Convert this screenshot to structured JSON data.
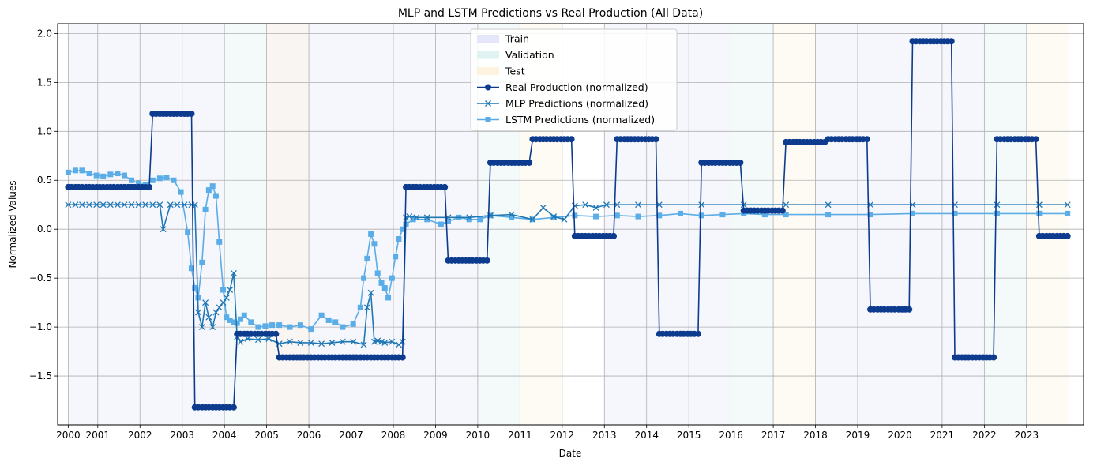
{
  "chart_data": {
    "type": "line",
    "title": "MLP and LSTM Predictions vs Real Production (All Data)",
    "xlabel": "Date",
    "ylabel": "Normalized Values",
    "x_range": [
      "2000-01-01",
      "2024-12-31"
    ],
    "ylim": [
      -2.0,
      2.1
    ],
    "grid": true,
    "legend_position": "top-center",
    "x_tick_labels": [
      "2000",
      "2001",
      "2002",
      "2003",
      "2004",
      "2005",
      "2006",
      "2007",
      "2008",
      "2009",
      "2010",
      "2011",
      "2012",
      "2013",
      "2014",
      "2015",
      "2016",
      "2017",
      "2018",
      "2019",
      "2020",
      "2021",
      "2022",
      "2023"
    ],
    "x_ticks_at_year": [
      2000.0,
      2000.7,
      2001.7,
      2002.7,
      2003.7,
      2004.7,
      2005.7,
      2006.7,
      2007.7,
      2008.7,
      2009.7,
      2010.7,
      2011.7,
      2012.7,
      2013.7,
      2014.7,
      2015.7,
      2016.7,
      2017.7,
      2018.7,
      2019.7,
      2020.7,
      2021.7,
      2022.7
    ],
    "y_ticks": [
      -1.5,
      -1.0,
      -0.5,
      0.0,
      0.5,
      1.0,
      1.5,
      2.0
    ],
    "y_tick_labels": [
      "−1.5",
      "−1.0",
      "−0.5",
      "0.0",
      "0.5",
      "1.0",
      "1.5",
      "2.0"
    ],
    "spans": [
      {
        "label": "Train",
        "color": "#e6e6fa",
        "ranges": [
          [
            2000.0,
            2003.7
          ],
          [
            2004.7,
            2009.7
          ],
          [
            2012.7,
            2015.7
          ],
          [
            2017.7,
            2021.7
          ]
        ]
      },
      {
        "label": "Validation",
        "color": "#e0f2f1",
        "ranges": [
          [
            2003.7,
            2004.7
          ],
          [
            2009.7,
            2010.7
          ],
          [
            2015.7,
            2016.7
          ],
          [
            2021.7,
            2022.7
          ]
        ]
      },
      {
        "label": "Test",
        "color": "#fdf3df",
        "ranges": [
          [
            2004.7,
            2005.7
          ],
          [
            2010.7,
            2011.7
          ],
          [
            2016.7,
            2017.7
          ],
          [
            2022.7,
            2023.7
          ]
        ]
      }
    ],
    "series": [
      {
        "name": "Real Production (normalized)",
        "color": "#0d3b8e",
        "marker": "circle",
        "x": [
          2000.0,
          2000.08,
          2000.17,
          2000.25,
          2000.33,
          2000.42,
          2000.5,
          2000.58,
          2000.67,
          2000.75,
          2000.83,
          2000.92,
          2001.0,
          2001.08,
          2001.17,
          2001.25,
          2001.33,
          2001.42,
          2001.5,
          2001.58,
          2001.67,
          2001.75,
          2001.83,
          2001.92,
          2002.0,
          2002.08,
          2002.17,
          2002.25,
          2002.33,
          2002.42,
          2002.5,
          2002.58,
          2002.67,
          2002.75,
          2002.83,
          2002.92,
          2003.0,
          2003.08,
          2003.17,
          2003.25,
          2003.33,
          2003.42,
          2003.5,
          2003.58,
          2003.67,
          2003.75,
          2003.83,
          2003.92,
          2004.0,
          2004.08,
          2004.17,
          2004.25,
          2004.33,
          2004.42,
          2004.5,
          2004.58,
          2004.67,
          2004.75,
          2004.83,
          2004.92,
          2005.0,
          2005.08,
          2005.17,
          2005.25,
          2005.33,
          2005.42,
          2005.5,
          2005.58,
          2005.67,
          2005.75,
          2005.83,
          2005.92,
          2006.0,
          2006.08,
          2006.17,
          2006.25,
          2006.33,
          2006.42,
          2006.5,
          2006.58,
          2006.67,
          2006.75,
          2006.83,
          2006.92,
          2007.0,
          2007.08,
          2007.17,
          2007.25,
          2007.33,
          2007.42,
          2007.5,
          2007.58,
          2007.67,
          2007.75,
          2007.83,
          2007.92,
          2008.0,
          2008.08,
          2008.17,
          2008.25,
          2008.33,
          2008.42,
          2008.5,
          2008.58,
          2008.67,
          2008.75,
          2008.83,
          2008.92,
          2009.0,
          2009.08,
          2009.17,
          2009.25,
          2009.33,
          2009.42,
          2009.5,
          2009.58,
          2009.67,
          2009.75,
          2009.83,
          2009.92,
          2010.0,
          2010.08,
          2010.17,
          2010.25,
          2010.33,
          2010.42,
          2010.5,
          2010.58,
          2010.67,
          2010.75,
          2010.83,
          2010.92,
          2011.0,
          2011.08,
          2011.17,
          2011.25,
          2011.33,
          2011.42,
          2011.5,
          2011.58,
          2011.67,
          2011.75,
          2011.83,
          2011.92,
          2012.0,
          2012.08,
          2012.17,
          2012.25,
          2012.33,
          2012.42,
          2012.5,
          2012.58,
          2012.67,
          2012.75,
          2012.83,
          2012.92,
          2013.0,
          2013.08,
          2013.17,
          2013.25,
          2013.33,
          2013.42,
          2013.5,
          2013.58,
          2013.67,
          2013.75,
          2013.83,
          2013.92,
          2014.0,
          2014.08,
          2014.17,
          2014.25,
          2014.33,
          2014.42,
          2014.5,
          2014.58,
          2014.67,
          2014.75,
          2014.83,
          2014.92,
          2015.0,
          2015.08,
          2015.17,
          2015.25,
          2015.33,
          2015.42,
          2015.5,
          2015.58,
          2015.67,
          2015.75,
          2015.83,
          2015.92,
          2016.0,
          2016.08,
          2016.17,
          2016.25,
          2016.33,
          2016.42,
          2016.5,
          2016.58,
          2016.67,
          2016.75,
          2016.83,
          2016.92,
          2017.0,
          2017.08,
          2017.17,
          2017.25,
          2017.33,
          2017.42,
          2017.5,
          2017.58,
          2017.67,
          2017.75,
          2017.83,
          2017.92,
          2018.0,
          2018.08,
          2018.17,
          2018.25,
          2018.33,
          2018.42,
          2018.5,
          2018.58,
          2018.67,
          2018.75,
          2018.83,
          2018.92,
          2019.0,
          2019.08,
          2019.17,
          2019.25,
          2019.33,
          2019.42,
          2019.5,
          2019.58,
          2019.67,
          2019.75,
          2019.83,
          2019.92,
          2020.0,
          2020.08,
          2020.17,
          2020.25,
          2020.33,
          2020.42,
          2020.5,
          2020.58,
          2020.67,
          2020.75,
          2020.83,
          2020.92,
          2021.0,
          2021.08,
          2021.17,
          2021.25,
          2021.33,
          2021.42,
          2021.5,
          2021.58,
          2021.67,
          2021.75,
          2021.83,
          2021.92,
          2022.0,
          2022.08,
          2022.17,
          2022.25,
          2022.33,
          2022.42,
          2022.5,
          2022.58,
          2022.67,
          2022.75,
          2022.83,
          2022.92,
          2023.0,
          2023.08,
          2023.17,
          2023.25,
          2023.33,
          2023.42,
          2023.5,
          2023.58,
          2023.67
        ],
        "y": [
          0.43,
          0.43,
          0.43,
          0.43,
          0.43,
          0.43,
          0.43,
          0.43,
          0.43,
          0.43,
          0.43,
          0.43,
          0.43,
          0.43,
          0.43,
          0.43,
          0.43,
          0.43,
          0.43,
          0.43,
          0.43,
          0.43,
          0.43,
          0.43,
          1.18,
          1.18,
          1.18,
          1.18,
          1.18,
          1.18,
          1.18,
          1.18,
          1.18,
          1.18,
          1.18,
          1.18,
          -1.82,
          -1.82,
          -1.82,
          -1.82,
          -1.82,
          -1.82,
          -1.82,
          -1.82,
          -1.82,
          -1.82,
          -1.82,
          -1.82,
          -1.07,
          -1.07,
          -1.07,
          -1.07,
          -1.07,
          -1.07,
          -1.07,
          -1.07,
          -1.07,
          -1.07,
          -1.07,
          -1.07,
          -1.31,
          -1.31,
          -1.31,
          -1.31,
          -1.31,
          -1.31,
          -1.31,
          -1.31,
          -1.31,
          -1.31,
          -1.31,
          -1.31,
          -1.31,
          -1.31,
          -1.31,
          -1.31,
          -1.31,
          -1.31,
          -1.31,
          -1.31,
          -1.31,
          -1.31,
          -1.31,
          -1.31,
          -1.31,
          -1.31,
          -1.31,
          -1.31,
          -1.31,
          -1.31,
          -1.31,
          -1.31,
          -1.31,
          -1.31,
          -1.31,
          -1.31,
          0.43,
          0.43,
          0.43,
          0.43,
          0.43,
          0.43,
          0.43,
          0.43,
          0.43,
          0.43,
          0.43,
          0.43,
          -0.32,
          -0.32,
          -0.32,
          -0.32,
          -0.32,
          -0.32,
          -0.32,
          -0.32,
          -0.32,
          -0.32,
          -0.32,
          -0.32,
          0.68,
          0.68,
          0.68,
          0.68,
          0.68,
          0.68,
          0.68,
          0.68,
          0.68,
          0.68,
          0.68,
          0.68,
          0.92,
          0.92,
          0.92,
          0.92,
          0.92,
          0.92,
          0.92,
          0.92,
          0.92,
          0.92,
          0.92,
          0.92,
          -0.07,
          -0.07,
          -0.07,
          -0.07,
          -0.07,
          -0.07,
          -0.07,
          -0.07,
          -0.07,
          -0.07,
          -0.07,
          -0.07,
          0.92,
          0.92,
          0.92,
          0.92,
          0.92,
          0.92,
          0.92,
          0.92,
          0.92,
          0.92,
          0.92,
          0.92,
          -1.07,
          -1.07,
          -1.07,
          -1.07,
          -1.07,
          -1.07,
          -1.07,
          -1.07,
          -1.07,
          -1.07,
          -1.07,
          -1.07,
          0.68,
          0.68,
          0.68,
          0.68,
          0.68,
          0.68,
          0.68,
          0.68,
          0.68,
          0.68,
          0.68,
          0.68,
          0.19,
          0.19,
          0.19,
          0.19,
          0.19,
          0.19,
          0.19,
          0.19,
          0.19,
          0.19,
          0.19,
          0.19,
          0.89,
          0.89,
          0.89,
          0.89,
          0.89,
          0.89,
          0.89,
          0.89,
          0.89,
          0.89,
          0.89,
          0.89,
          0.92,
          0.92,
          0.92,
          0.92,
          0.92,
          0.92,
          0.92,
          0.92,
          0.92,
          0.92,
          0.92,
          0.92,
          -0.82,
          -0.82,
          -0.82,
          -0.82,
          -0.82,
          -0.82,
          -0.82,
          -0.82,
          -0.82,
          -0.82,
          -0.82,
          -0.82,
          1.92,
          1.92,
          1.92,
          1.92,
          1.92,
          1.92,
          1.92,
          1.92,
          1.92,
          1.92,
          1.92,
          1.92,
          -1.31,
          -1.31,
          -1.31,
          -1.31,
          -1.31,
          -1.31,
          -1.31,
          -1.31,
          -1.31,
          -1.31,
          -1.31,
          -1.31,
          0.92,
          0.92,
          0.92,
          0.92,
          0.92,
          0.92,
          0.92,
          0.92,
          0.92,
          0.92,
          0.92,
          0.92,
          -0.07,
          -0.07,
          -0.07,
          -0.07,
          -0.07,
          -0.07,
          -0.07,
          -0.07,
          -0.07
        ]
      },
      {
        "name": "MLP Predictions (normalized)",
        "color": "#1f77b4",
        "marker": "x",
        "x": [
          2000.0,
          2000.17,
          2000.33,
          2000.5,
          2000.67,
          2000.83,
          2001.0,
          2001.17,
          2001.33,
          2001.5,
          2001.67,
          2001.83,
          2002.0,
          2002.17,
          2002.25,
          2002.42,
          2002.58,
          2002.75,
          2002.92,
          2003.0,
          2003.08,
          2003.17,
          2003.25,
          2003.33,
          2003.42,
          2003.5,
          2003.58,
          2003.67,
          2003.75,
          2003.83,
          2003.92,
          2004.0,
          2004.08,
          2004.25,
          2004.5,
          2004.75,
          2005.0,
          2005.25,
          2005.5,
          2005.75,
          2006.0,
          2006.25,
          2006.5,
          2006.75,
          2007.0,
          2007.08,
          2007.17,
          2007.25,
          2007.33,
          2007.42,
          2007.5,
          2007.67,
          2007.83,
          2007.92,
          2008.0,
          2008.08,
          2008.25,
          2008.5,
          2009.0,
          2009.5,
          2010.0,
          2010.5,
          2011.0,
          2011.25,
          2011.5,
          2011.75,
          2012.0,
          2012.25,
          2012.5,
          2012.75,
          2013.0,
          2013.5,
          2014.0,
          2015.0,
          2016.0,
          2017.0,
          2018.0,
          2019.0,
          2020.0,
          2021.0,
          2022.0,
          2023.0,
          2023.67
        ],
        "y": [
          0.25,
          0.25,
          0.25,
          0.25,
          0.25,
          0.25,
          0.25,
          0.25,
          0.25,
          0.25,
          0.25,
          0.25,
          0.25,
          0.25,
          0.0,
          0.25,
          0.25,
          0.25,
          0.25,
          0.25,
          -0.85,
          -1.0,
          -0.75,
          -0.9,
          -1.0,
          -0.85,
          -0.8,
          -0.75,
          -0.7,
          -0.62,
          -0.45,
          -1.1,
          -1.15,
          -1.12,
          -1.13,
          -1.12,
          -1.17,
          -1.15,
          -1.16,
          -1.16,
          -1.17,
          -1.16,
          -1.15,
          -1.15,
          -1.18,
          -0.8,
          -0.65,
          -1.15,
          -1.14,
          -1.15,
          -1.16,
          -1.15,
          -1.18,
          -1.15,
          0.12,
          0.13,
          0.12,
          0.12,
          0.12,
          0.12,
          0.14,
          0.15,
          0.1,
          0.22,
          0.13,
          0.1,
          0.24,
          0.25,
          0.22,
          0.25,
          0.25,
          0.25,
          0.25,
          0.25,
          0.25,
          0.25,
          0.25,
          0.25,
          0.25,
          0.25,
          0.25,
          0.25,
          0.25
        ]
      },
      {
        "name": "LSTM Predictions (normalized)",
        "color": "#5aade6",
        "marker": "square",
        "x": [
          2000.0,
          2000.17,
          2000.33,
          2000.5,
          2000.67,
          2000.83,
          2001.0,
          2001.17,
          2001.33,
          2001.5,
          2001.67,
          2001.83,
          2002.0,
          2002.17,
          2002.33,
          2002.5,
          2002.67,
          2002.83,
          2002.92,
          2003.0,
          2003.08,
          2003.17,
          2003.25,
          2003.33,
          2003.42,
          2003.5,
          2003.58,
          2003.67,
          2003.75,
          2003.83,
          2003.92,
          2004.0,
          2004.08,
          2004.17,
          2004.33,
          2004.5,
          2004.67,
          2004.83,
          2005.0,
          2005.25,
          2005.5,
          2005.75,
          2006.0,
          2006.17,
          2006.33,
          2006.5,
          2006.75,
          2006.92,
          2007.0,
          2007.08,
          2007.17,
          2007.25,
          2007.33,
          2007.42,
          2007.5,
          2007.58,
          2007.67,
          2007.75,
          2007.83,
          2007.92,
          2008.0,
          2008.17,
          2008.5,
          2008.83,
          2009.0,
          2009.25,
          2009.5,
          2009.75,
          2010.0,
          2010.5,
          2011.0,
          2011.5,
          2012.0,
          2012.5,
          2013.0,
          2013.5,
          2014.0,
          2014.5,
          2015.0,
          2015.5,
          2016.0,
          2016.5,
          2017.0,
          2018.0,
          2019.0,
          2020.0,
          2021.0,
          2022.0,
          2023.0,
          2023.67
        ],
        "y": [
          0.58,
          0.6,
          0.6,
          0.57,
          0.55,
          0.54,
          0.56,
          0.57,
          0.55,
          0.5,
          0.47,
          0.45,
          0.5,
          0.52,
          0.53,
          0.5,
          0.38,
          -0.03,
          -0.4,
          -0.6,
          -0.7,
          -0.34,
          0.2,
          0.4,
          0.44,
          0.34,
          -0.13,
          -0.62,
          -0.9,
          -0.93,
          -0.95,
          -0.96,
          -0.92,
          -0.88,
          -0.95,
          -1.0,
          -0.99,
          -0.98,
          -0.98,
          -1.0,
          -0.98,
          -1.02,
          -0.88,
          -0.93,
          -0.95,
          -1.0,
          -0.97,
          -0.8,
          -0.5,
          -0.3,
          -0.05,
          -0.15,
          -0.45,
          -0.55,
          -0.6,
          -0.7,
          -0.5,
          -0.28,
          -0.1,
          0.0,
          0.05,
          0.1,
          0.1,
          0.05,
          0.08,
          0.12,
          0.1,
          0.1,
          0.14,
          0.12,
          0.1,
          0.12,
          0.14,
          0.13,
          0.14,
          0.13,
          0.14,
          0.16,
          0.14,
          0.15,
          0.16,
          0.15,
          0.15,
          0.15,
          0.15,
          0.16,
          0.16,
          0.16,
          0.16,
          0.16
        ]
      }
    ]
  }
}
